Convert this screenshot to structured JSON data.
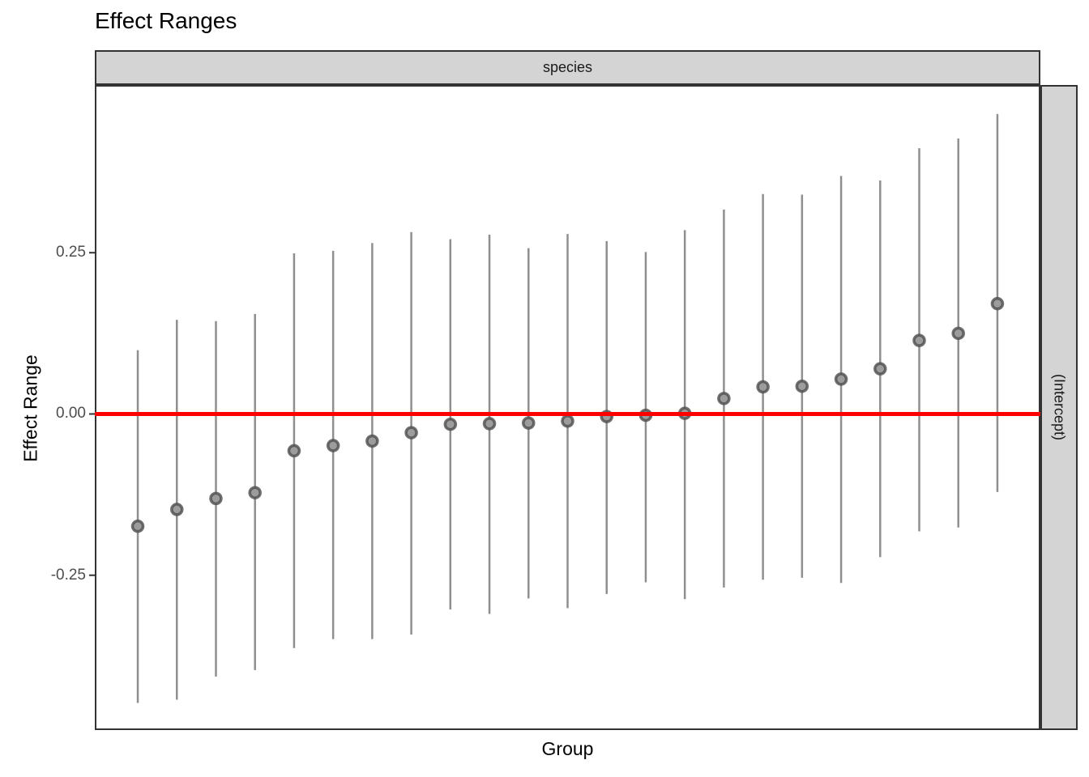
{
  "title": "Effect Ranges",
  "facet": {
    "top_strip_label": "species",
    "right_strip_label": "(Intercept)"
  },
  "axes": {
    "x_title": "Group",
    "y_title": "Effect Range",
    "y_ticks": [
      {
        "label": "0.25",
        "value": 0.25
      },
      {
        "label": "0.00",
        "value": 0.0
      },
      {
        "label": "-0.25",
        "value": -0.25
      }
    ]
  },
  "colors": {
    "reference_line": "#FF0000",
    "errorbar": "#8F8F8F",
    "point_fill": "#9C9C9C",
    "point_stroke": "#4D4D4D",
    "strip_fill": "#D4D4D4",
    "panel_border": "#333333",
    "axis_text": "#4D4D4D"
  },
  "chart_data": {
    "type": "pointrange",
    "title": "Effect Ranges",
    "xlabel": "Group",
    "ylabel": "Effect Range",
    "facet_label": "species",
    "parameter": "(Intercept)",
    "reference_line_y": 0,
    "grid": false,
    "legend": "none",
    "ylim": [
      -0.49,
      0.51
    ],
    "xlim": [
      -0.1,
      24.1
    ],
    "points": [
      {
        "x": 1,
        "estimate": -0.174,
        "lower": -0.448,
        "upper": 0.099
      },
      {
        "x": 2,
        "estimate": -0.148,
        "lower": -0.443,
        "upper": 0.146
      },
      {
        "x": 3,
        "estimate": -0.131,
        "lower": -0.407,
        "upper": 0.144
      },
      {
        "x": 4,
        "estimate": -0.122,
        "lower": -0.397,
        "upper": 0.155
      },
      {
        "x": 5,
        "estimate": -0.057,
        "lower": -0.363,
        "upper": 0.249
      },
      {
        "x": 6,
        "estimate": -0.049,
        "lower": -0.349,
        "upper": 0.253
      },
      {
        "x": 7,
        "estimate": -0.042,
        "lower": -0.349,
        "upper": 0.265
      },
      {
        "x": 8,
        "estimate": -0.029,
        "lower": -0.342,
        "upper": 0.282
      },
      {
        "x": 9,
        "estimate": -0.016,
        "lower": -0.303,
        "upper": 0.271
      },
      {
        "x": 10,
        "estimate": -0.015,
        "lower": -0.31,
        "upper": 0.278
      },
      {
        "x": 11,
        "estimate": -0.014,
        "lower": -0.286,
        "upper": 0.257
      },
      {
        "x": 12,
        "estimate": -0.011,
        "lower": -0.301,
        "upper": 0.279
      },
      {
        "x": 13,
        "estimate": -0.004,
        "lower": -0.279,
        "upper": 0.268
      },
      {
        "x": 14,
        "estimate": -0.002,
        "lower": -0.261,
        "upper": 0.251
      },
      {
        "x": 15,
        "estimate": 0.001,
        "lower": -0.287,
        "upper": 0.285
      },
      {
        "x": 16,
        "estimate": 0.024,
        "lower": -0.269,
        "upper": 0.317
      },
      {
        "x": 17,
        "estimate": 0.042,
        "lower": -0.257,
        "upper": 0.341
      },
      {
        "x": 18,
        "estimate": 0.043,
        "lower": -0.254,
        "upper": 0.34
      },
      {
        "x": 19,
        "estimate": 0.054,
        "lower": -0.262,
        "upper": 0.369
      },
      {
        "x": 20,
        "estimate": 0.07,
        "lower": -0.222,
        "upper": 0.362
      },
      {
        "x": 21,
        "estimate": 0.114,
        "lower": -0.182,
        "upper": 0.412
      },
      {
        "x": 22,
        "estimate": 0.125,
        "lower": -0.176,
        "upper": 0.427
      },
      {
        "x": 23,
        "estimate": 0.171,
        "lower": -0.121,
        "upper": 0.465
      }
    ]
  }
}
